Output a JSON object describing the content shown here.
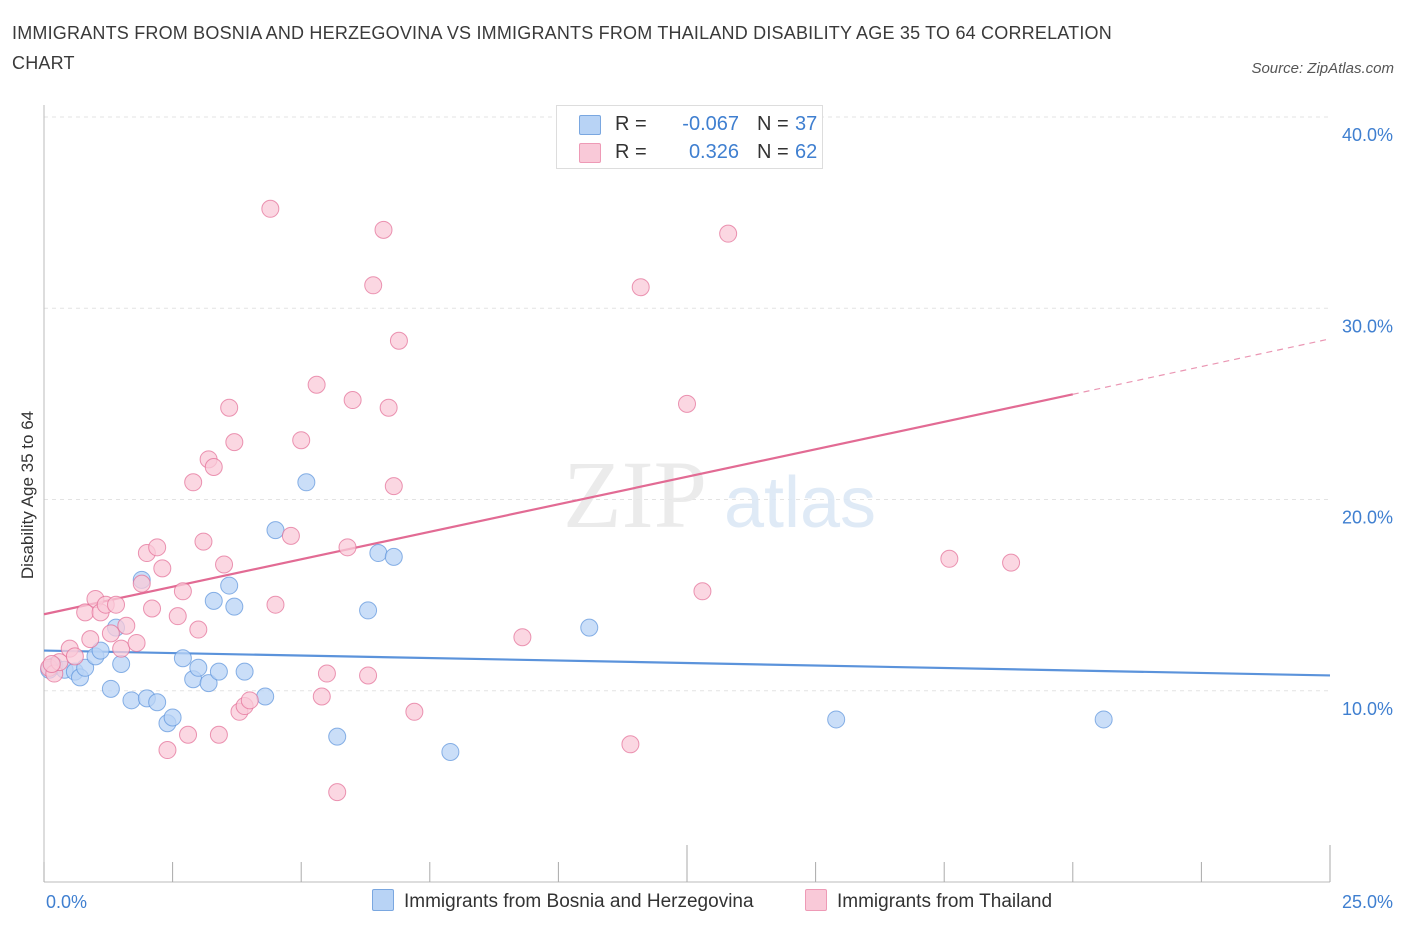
{
  "header": {
    "title": "IMMIGRANTS FROM BOSNIA AND HERZEGOVINA VS IMMIGRANTS FROM THAILAND DISABILITY AGE 35 TO 64 CORRELATION CHART",
    "source": "Source: ZipAtlas.com"
  },
  "watermark": {
    "zip": "ZIP",
    "atlas": "atlas"
  },
  "legend": {
    "rows": [
      {
        "r_label": "R =",
        "r_value": "-0.067",
        "n_label": "N =",
        "n_value": "37",
        "color": "#b8d3f5",
        "border": "#7aa7e0"
      },
      {
        "r_label": "R =",
        "r_value": "0.326",
        "n_label": "N =",
        "n_value": "62",
        "color": "#f9c9d8",
        "border": "#ee9ab6"
      }
    ]
  },
  "bottom_legend": {
    "bosnia": "Immigrants from Bosnia and Herzegovina",
    "thailand": "Immigrants from Thailand"
  },
  "chart_data": {
    "type": "scatter",
    "title": "IMMIGRANTS FROM BOSNIA AND HERZEGOVINA VS IMMIGRANTS FROM THAILAND DISABILITY AGE 35 TO 64 CORRELATION CHART",
    "xlabel": "",
    "ylabel": "Disability Age 35 to 64",
    "xlim": [
      0,
      25
    ],
    "ylim": [
      0,
      40
    ],
    "x_tick_labels": [
      "0.0%",
      "25.0%"
    ],
    "y_tick_labels": [
      "10.0%",
      "20.0%",
      "30.0%",
      "40.0%"
    ],
    "y_ticks": [
      10,
      20,
      30,
      40
    ],
    "grid": true,
    "legend_position": "top-center",
    "series": [
      {
        "name": "Immigrants from Bosnia and Herzegovina",
        "color": "#5b93db",
        "fill": "#b8d3f5",
        "trend": {
          "x": [
            0,
            25
          ],
          "y": [
            12.1,
            10.8
          ]
        },
        "points": [
          [
            0.2,
            11.3
          ],
          [
            0.4,
            11.1
          ],
          [
            0.6,
            11.0
          ],
          [
            0.7,
            10.7
          ],
          [
            0.8,
            11.2
          ],
          [
            1.0,
            11.8
          ],
          [
            1.1,
            12.1
          ],
          [
            1.3,
            10.1
          ],
          [
            1.4,
            13.3
          ],
          [
            1.5,
            11.4
          ],
          [
            1.7,
            9.5
          ],
          [
            1.9,
            15.8
          ],
          [
            2.0,
            9.6
          ],
          [
            2.2,
            9.4
          ],
          [
            2.4,
            8.3
          ],
          [
            2.5,
            8.6
          ],
          [
            2.7,
            11.7
          ],
          [
            2.9,
            10.6
          ],
          [
            3.0,
            11.2
          ],
          [
            3.2,
            10.4
          ],
          [
            3.3,
            14.7
          ],
          [
            3.4,
            11.0
          ],
          [
            3.6,
            15.5
          ],
          [
            3.7,
            14.4
          ],
          [
            3.9,
            11.0
          ],
          [
            4.3,
            9.7
          ],
          [
            4.5,
            18.4
          ],
          [
            5.1,
            20.9
          ],
          [
            5.7,
            7.6
          ],
          [
            6.5,
            17.2
          ],
          [
            6.3,
            14.2
          ],
          [
            6.8,
            17.0
          ],
          [
            7.9,
            6.8
          ],
          [
            10.6,
            13.3
          ],
          [
            15.4,
            8.5
          ],
          [
            20.6,
            8.5
          ],
          [
            0.1,
            11.1
          ]
        ]
      },
      {
        "name": "Immigrants from Thailand",
        "color": "#e26b94",
        "fill": "#f9c9d8",
        "trend": {
          "x": [
            0,
            20
          ],
          "y": [
            14.0,
            25.5
          ]
        },
        "trend_extension": {
          "x": [
            20,
            25
          ],
          "y": [
            25.5,
            28.4
          ]
        },
        "points": [
          [
            0.1,
            11.2
          ],
          [
            0.2,
            10.9
          ],
          [
            0.3,
            11.5
          ],
          [
            0.5,
            12.2
          ],
          [
            0.6,
            11.8
          ],
          [
            0.8,
            14.1
          ],
          [
            0.9,
            12.7
          ],
          [
            1.0,
            14.8
          ],
          [
            1.1,
            14.1
          ],
          [
            1.2,
            14.5
          ],
          [
            1.3,
            13.0
          ],
          [
            1.4,
            14.5
          ],
          [
            1.5,
            12.2
          ],
          [
            1.6,
            13.4
          ],
          [
            1.8,
            12.5
          ],
          [
            1.9,
            15.6
          ],
          [
            2.0,
            17.2
          ],
          [
            2.1,
            14.3
          ],
          [
            2.2,
            17.5
          ],
          [
            2.3,
            16.4
          ],
          [
            2.4,
            6.9
          ],
          [
            2.6,
            13.9
          ],
          [
            2.7,
            15.2
          ],
          [
            2.8,
            7.7
          ],
          [
            2.9,
            20.9
          ],
          [
            3.0,
            13.2
          ],
          [
            3.1,
            17.8
          ],
          [
            3.2,
            22.1
          ],
          [
            3.3,
            21.7
          ],
          [
            3.4,
            7.7
          ],
          [
            3.5,
            16.6
          ],
          [
            3.6,
            24.8
          ],
          [
            3.7,
            23.0
          ],
          [
            3.8,
            8.9
          ],
          [
            3.9,
            9.2
          ],
          [
            4.0,
            9.5
          ],
          [
            4.4,
            35.2
          ],
          [
            4.5,
            14.5
          ],
          [
            4.8,
            18.1
          ],
          [
            5.0,
            23.1
          ],
          [
            5.3,
            26.0
          ],
          [
            5.4,
            9.7
          ],
          [
            5.5,
            10.9
          ],
          [
            5.7,
            4.7
          ],
          [
            5.9,
            17.5
          ],
          [
            6.0,
            25.2
          ],
          [
            6.3,
            10.8
          ],
          [
            6.4,
            31.2
          ],
          [
            6.6,
            34.1
          ],
          [
            6.7,
            24.8
          ],
          [
            6.8,
            20.7
          ],
          [
            6.9,
            28.3
          ],
          [
            7.2,
            8.9
          ],
          [
            9.3,
            12.8
          ],
          [
            11.4,
            7.2
          ],
          [
            11.6,
            31.1
          ],
          [
            12.5,
            25.0
          ],
          [
            12.8,
            15.2
          ],
          [
            13.3,
            33.9
          ],
          [
            17.6,
            16.9
          ],
          [
            18.8,
            16.7
          ],
          [
            0.15,
            11.4
          ]
        ]
      }
    ]
  }
}
